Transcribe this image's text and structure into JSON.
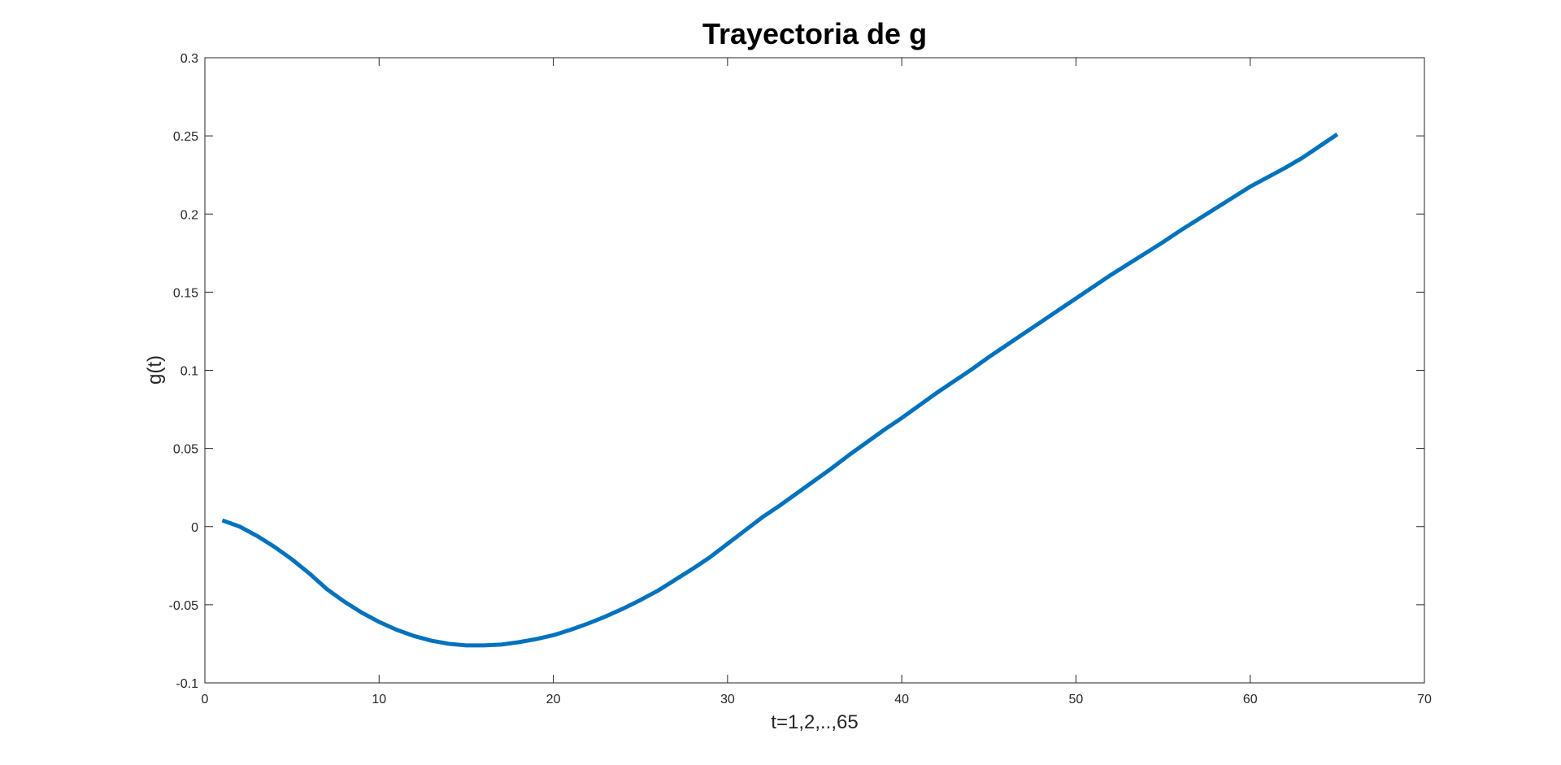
{
  "chart_data": {
    "type": "line",
    "title": "Trayectoria de g",
    "xlabel": "t=1,2,..,65",
    "ylabel": "g(t)",
    "xlim": [
      0,
      70
    ],
    "ylim": [
      -0.1,
      0.3
    ],
    "xticks": [
      0,
      10,
      20,
      30,
      40,
      50,
      60,
      70
    ],
    "yticks": [
      -0.1,
      -0.05,
      0,
      0.05,
      0.1,
      0.15,
      0.2,
      0.25,
      0.3
    ],
    "xtick_labels": [
      "0",
      "10",
      "20",
      "30",
      "40",
      "50",
      "60",
      "70"
    ],
    "ytick_labels": [
      "-0.1",
      "-0.05",
      "0",
      "0.05",
      "0.1",
      "0.15",
      "0.2",
      "0.25",
      "0.3"
    ],
    "grid": false,
    "series": [
      {
        "color": "#0072BD",
        "x": [
          1,
          2,
          3,
          4,
          5,
          6,
          7,
          8,
          9,
          10,
          11,
          12,
          13,
          14,
          15,
          16,
          17,
          18,
          19,
          20,
          21,
          22,
          23,
          24,
          25,
          26,
          27,
          28,
          29,
          30,
          31,
          32,
          33,
          34,
          35,
          36,
          37,
          38,
          39,
          40,
          41,
          42,
          43,
          44,
          45,
          46,
          47,
          48,
          49,
          50,
          51,
          52,
          53,
          54,
          55,
          56,
          57,
          58,
          59,
          60,
          61,
          62,
          63,
          64,
          65
        ],
        "y": [
          0.004,
          0.0,
          -0.006,
          -0.013,
          -0.021,
          -0.03,
          -0.04,
          -0.048,
          -0.055,
          -0.061,
          -0.066,
          -0.07,
          -0.073,
          -0.075,
          -0.076,
          -0.076,
          -0.0755,
          -0.074,
          -0.072,
          -0.0695,
          -0.066,
          -0.062,
          -0.0575,
          -0.0525,
          -0.047,
          -0.041,
          -0.034,
          -0.027,
          -0.0195,
          -0.011,
          -0.0025,
          0.006,
          0.0135,
          0.0215,
          0.0295,
          0.0375,
          0.046,
          0.054,
          0.062,
          0.0695,
          0.0775,
          0.0855,
          0.093,
          0.1005,
          0.1085,
          0.116,
          0.1235,
          0.131,
          0.1385,
          0.146,
          0.1535,
          0.161,
          0.168,
          0.175,
          0.182,
          0.1895,
          0.1965,
          0.2035,
          0.2105,
          0.2175,
          0.2235,
          0.2295,
          0.236,
          0.2435,
          0.251
        ]
      }
    ]
  }
}
